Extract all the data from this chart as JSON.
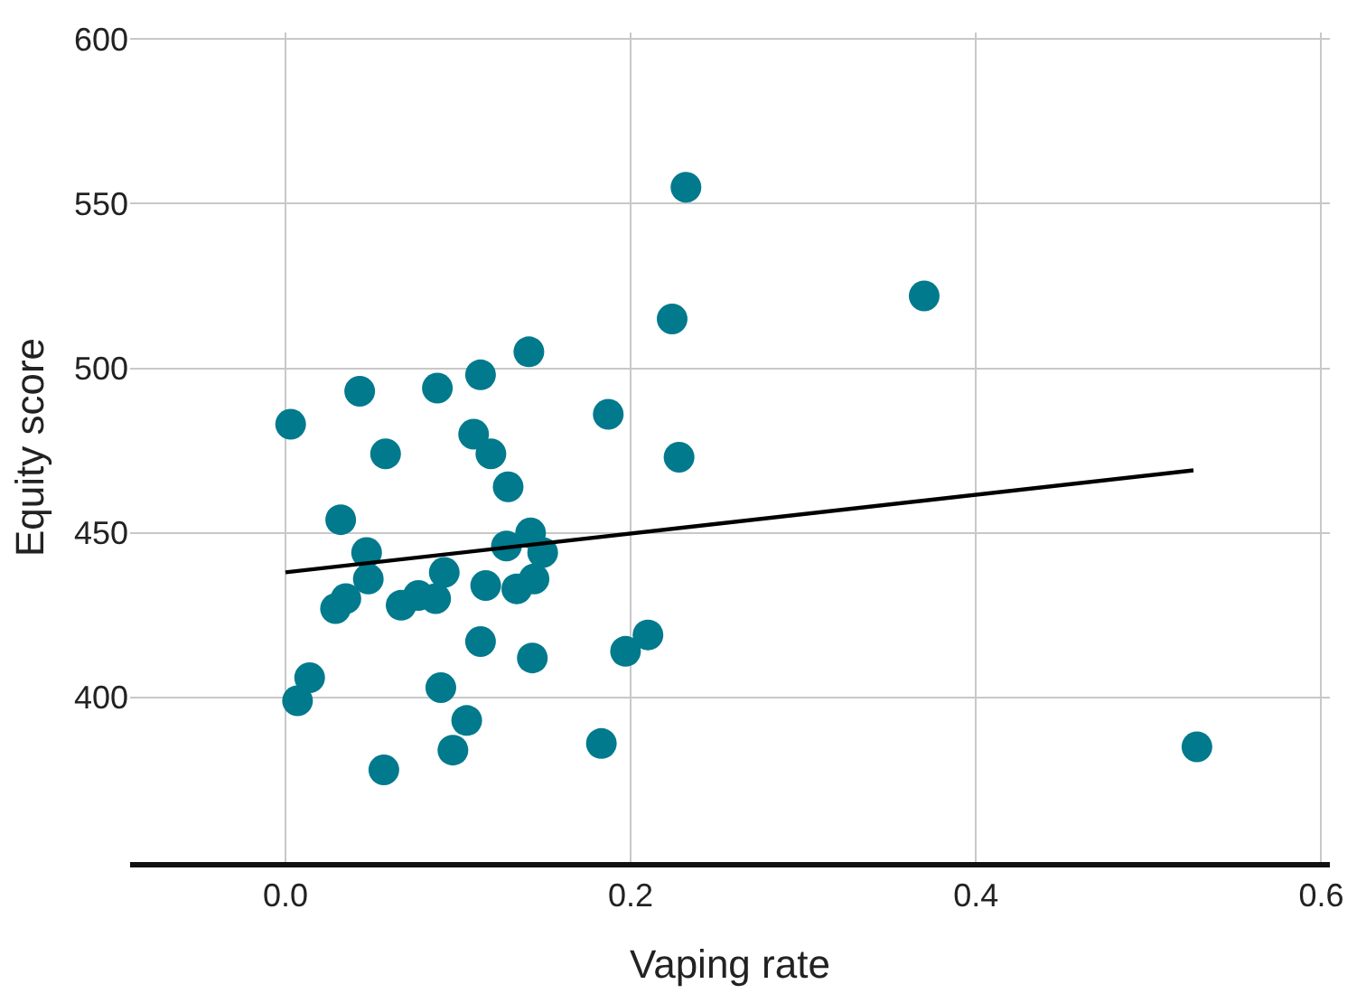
{
  "chart_data": {
    "type": "scatter",
    "xlabel": "Vaping rate",
    "ylabel": "Equity score",
    "xlim": [
      -0.09,
      0.605
    ],
    "ylim": [
      350,
      602
    ],
    "xticks": [
      {
        "value": 0,
        "label": "0.0"
      },
      0.2,
      0.4,
      0.6
    ],
    "yticks": [
      400,
      450,
      500,
      550,
      600
    ],
    "grid": true,
    "series": [
      {
        "marker": "circle",
        "color": "#007a8c",
        "x": [
          0.003,
          0.007,
          0.014,
          0.029,
          0.032,
          0.035,
          0.043,
          0.047,
          0.048,
          0.057,
          0.058,
          0.067,
          0.077,
          0.087,
          0.088,
          0.09,
          0.092,
          0.097,
          0.105,
          0.109,
          0.113,
          0.113,
          0.116,
          0.119,
          0.129,
          0.128,
          0.134,
          0.141,
          0.142,
          0.143,
          0.144,
          0.149,
          0.183,
          0.187,
          0.197,
          0.21,
          0.224,
          0.228,
          0.232,
          0.37,
          0.528
        ],
        "values": [
          483,
          399,
          406,
          427,
          454,
          430,
          493,
          444,
          436,
          378,
          474,
          428,
          431,
          430,
          494,
          403,
          438,
          384,
          393,
          480,
          417,
          498,
          434,
          474,
          464,
          446,
          433,
          505,
          450,
          412,
          436,
          444,
          386,
          486,
          414,
          419,
          515,
          473,
          555,
          522,
          385
        ]
      },
      {
        "type": "line",
        "color": "#000000",
        "x": [
          0,
          0.526
        ],
        "values": [
          438,
          469
        ]
      }
    ]
  }
}
